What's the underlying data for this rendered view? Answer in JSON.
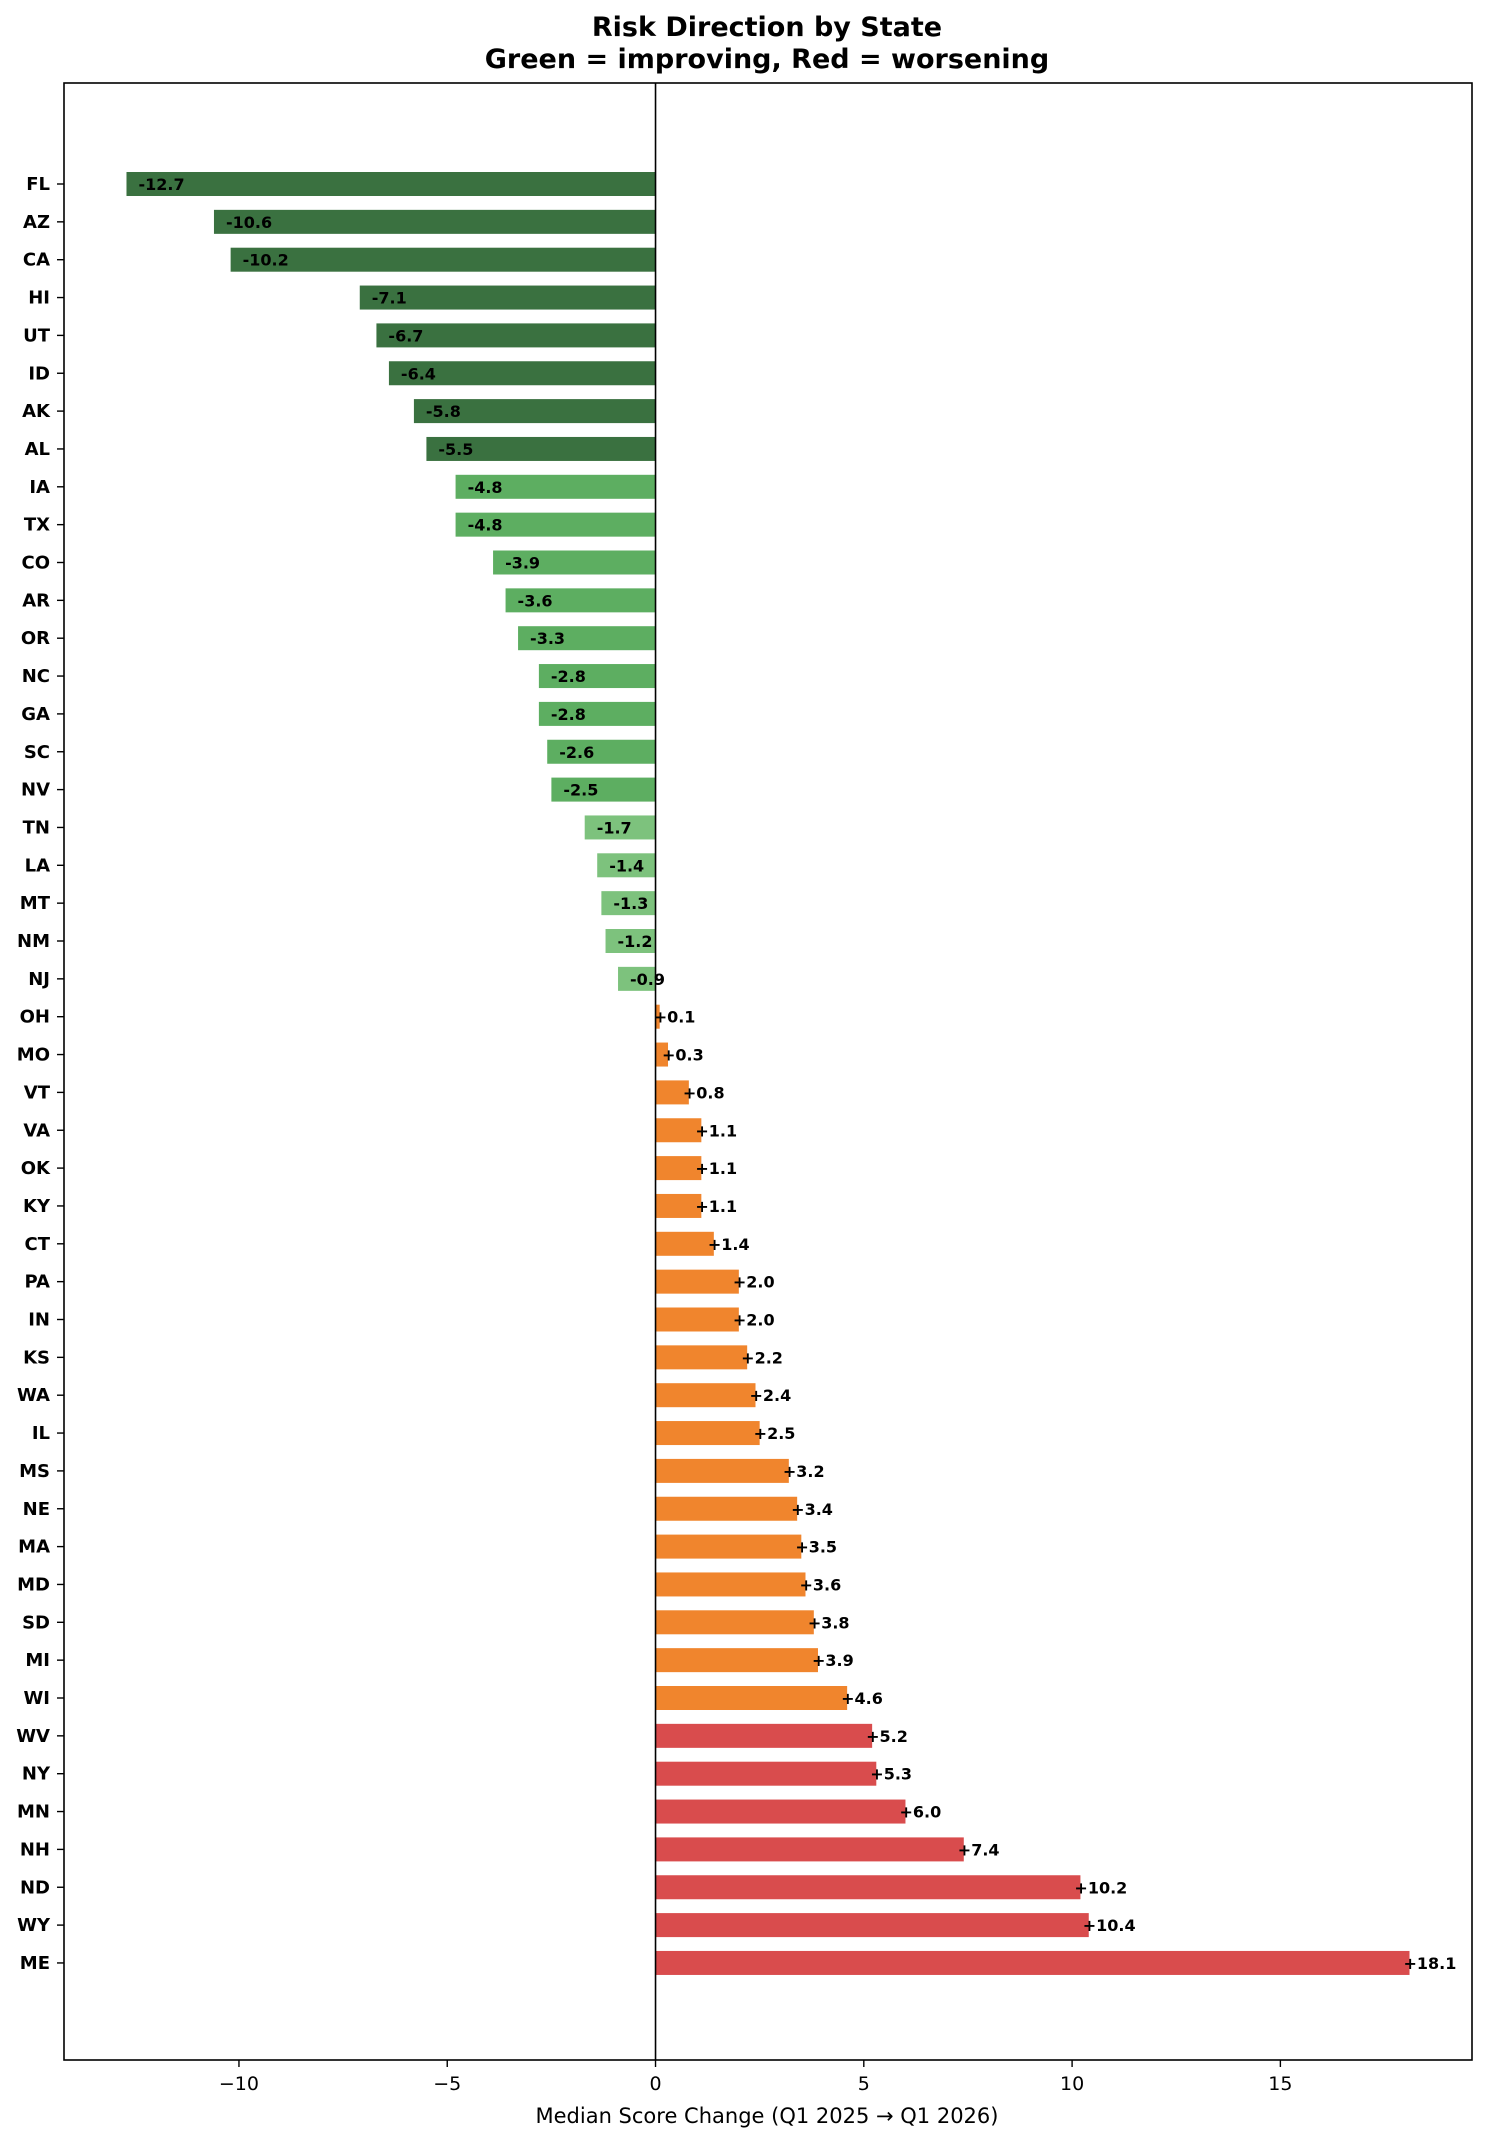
{
  "chart_data": {
    "type": "bar",
    "orientation": "horizontal",
    "title": "Risk Direction by State",
    "subtitle": "Green = improving, Red = worsening",
    "xlabel": "Median Score Change (Q1 2025 → Q1 2026)",
    "ylabel": "",
    "xlim": [
      -14.2,
      19.6
    ],
    "xticks": [
      -10,
      -5,
      0,
      5,
      10,
      15
    ],
    "xtick_labels": [
      "−10",
      "−5",
      "0",
      "5",
      "10",
      "15"
    ],
    "grid": false,
    "categories": [
      "FL",
      "AZ",
      "CA",
      "HI",
      "UT",
      "ID",
      "AK",
      "AL",
      "IA",
      "TX",
      "CO",
      "AR",
      "OR",
      "NC",
      "GA",
      "SC",
      "NV",
      "TN",
      "LA",
      "MT",
      "NM",
      "NJ",
      "OH",
      "MO",
      "VT",
      "VA",
      "OK",
      "KY",
      "CT",
      "PA",
      "IN",
      "KS",
      "WA",
      "IL",
      "MS",
      "NE",
      "MA",
      "MD",
      "SD",
      "MI",
      "WI",
      "WV",
      "NY",
      "MN",
      "NH",
      "ND",
      "WY",
      "ME"
    ],
    "values": [
      -12.7,
      -10.6,
      -10.2,
      -7.1,
      -6.7,
      -6.4,
      -5.8,
      -5.5,
      -4.8,
      -4.8,
      -3.9,
      -3.6,
      -3.3,
      -2.8,
      -2.8,
      -2.6,
      -2.5,
      -1.7,
      -1.4,
      -1.3,
      -1.2,
      -0.9,
      0.1,
      0.3,
      0.8,
      1.1,
      1.1,
      1.1,
      1.4,
      2.0,
      2.0,
      2.2,
      2.4,
      2.5,
      3.2,
      3.4,
      3.5,
      3.6,
      3.8,
      3.9,
      4.6,
      5.2,
      5.3,
      6.0,
      7.4,
      10.2,
      10.4,
      18.1
    ],
    "data_labels": [
      "-12.7",
      "-10.6",
      "-10.2",
      "-7.1",
      "-6.7",
      "-6.4",
      "-5.8",
      "-5.5",
      "-4.8",
      "-4.8",
      "-3.9",
      "-3.6",
      "-3.3",
      "-2.8",
      "-2.8",
      "-2.6",
      "-2.5",
      "-1.7",
      "-1.4",
      "-1.3",
      "-1.2",
      "-0.9",
      "+0.1",
      "+0.3",
      "+0.8",
      "+1.1",
      "+1.1",
      "+1.1",
      "+1.4",
      "+2.0",
      "+2.0",
      "+2.2",
      "+2.4",
      "+2.5",
      "+3.2",
      "+3.4",
      "+3.5",
      "+3.6",
      "+3.8",
      "+3.9",
      "+4.6",
      "+5.2",
      "+5.3",
      "+6.0",
      "+7.4",
      "+10.2",
      "+10.4",
      "+18.1"
    ],
    "colors": {
      "strong_improving": "#3a7140",
      "improving": "#5dae61",
      "slight_improving": "#7dc27d",
      "worsening": "#f0852d",
      "strong_worsening": "#d94c4d"
    },
    "color_groups": [
      "strong_improving",
      "strong_improving",
      "strong_improving",
      "strong_improving",
      "strong_improving",
      "strong_improving",
      "strong_improving",
      "strong_improving",
      "improving",
      "improving",
      "improving",
      "improving",
      "improving",
      "improving",
      "improving",
      "improving",
      "improving",
      "slight_improving",
      "slight_improving",
      "slight_improving",
      "slight_improving",
      "slight_improving",
      "worsening",
      "worsening",
      "worsening",
      "worsening",
      "worsening",
      "worsening",
      "worsening",
      "worsening",
      "worsening",
      "worsening",
      "worsening",
      "worsening",
      "worsening",
      "worsening",
      "worsening",
      "worsening",
      "worsening",
      "worsening",
      "worsening",
      "strong_worsening",
      "strong_worsening",
      "strong_worsening",
      "strong_worsening",
      "strong_worsening",
      "strong_worsening",
      "strong_worsening"
    ]
  }
}
